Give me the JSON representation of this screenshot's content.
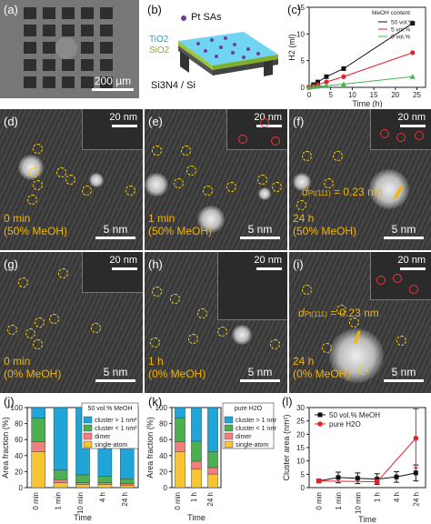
{
  "labels": {
    "a": "(a)",
    "b": "(b)",
    "c": "(c)",
    "d": "(d)",
    "e": "(e)",
    "f": "(f)",
    "g": "(g)",
    "h": "(h)",
    "i": "(i)",
    "j": "(j)",
    "k": "(k)",
    "l": "(l)"
  },
  "panel_a": {
    "scalebar": "200 µm"
  },
  "panel_b": {
    "legend": "Pt SAs",
    "tio2": "TiO2",
    "sio2": "SiO2",
    "substrate": "Si3N4 / Si"
  },
  "tem": {
    "inset_scale": "20 nm",
    "main_scale": "5 nm",
    "d": {
      "line1": "0 min",
      "line2": "(50% MeOH)"
    },
    "e": {
      "line1": "1 min",
      "line2": "(50% MeOH)"
    },
    "f": {
      "line1": "24 h",
      "line2": "(50% MeOH)",
      "dspacing": "= 0.23 nm",
      "dsub": "Pt(111)"
    },
    "g": {
      "line1": "0 min",
      "line2": "(0% MeOH)"
    },
    "h": {
      "line1": "1 h",
      "line2": "(0% MeOH)"
    },
    "i": {
      "line1": "24 h",
      "line2": "(0% MeOH)",
      "dspacing": "= 0.23 nm",
      "dsub": "Pt(111)"
    }
  },
  "colors": {
    "single": "#f7c531",
    "dimer": "#f08080",
    "cluster_lt1": "#4caf50",
    "cluster_gt1": "#1fa5d8",
    "series_50": "#111111",
    "series_pure": "#e8202a",
    "series_5": "#e8202a",
    "series_0": "#4caf50",
    "tem_yellow": "#f5b400"
  },
  "chart_data": [
    {
      "id": "c",
      "type": "line",
      "xlabel": "Time (h)",
      "ylabel": "H2 (ml)",
      "xlim": [
        0,
        27
      ],
      "ylim": [
        0,
        15
      ],
      "xticks": [
        0,
        5,
        10,
        15,
        20,
        25
      ],
      "yticks": [
        0,
        5,
        10,
        15
      ],
      "legend_title": "MeOH content",
      "series": [
        {
          "name": "50 vol.%",
          "x": [
            0,
            1,
            2,
            4,
            8,
            24
          ],
          "y": [
            0,
            0.5,
            1.0,
            2.0,
            3.5,
            12.0
          ]
        },
        {
          "name": "5 vol.%",
          "x": [
            0,
            1,
            2,
            4,
            8,
            24
          ],
          "y": [
            0,
            0.2,
            0.5,
            1.0,
            2.0,
            6.5
          ]
        },
        {
          "name": "0 vol.%",
          "x": [
            0,
            1,
            2,
            4,
            8,
            24
          ],
          "y": [
            0,
            0.1,
            0.2,
            0.3,
            0.6,
            2.0
          ]
        }
      ]
    },
    {
      "id": "j",
      "type": "bar",
      "stacked": true,
      "xlabel": "Time",
      "ylabel": "Area fraction (%)",
      "title": "50 vol.% MeOH",
      "ylim": [
        0,
        100
      ],
      "yticks": [
        0,
        20,
        40,
        60,
        80,
        100
      ],
      "categories": [
        "0 min",
        "1 min",
        "10 min",
        "4 h",
        "24 h"
      ],
      "series": [
        {
          "name": "single-atom",
          "values": [
            45,
            6,
            4,
            4,
            3
          ]
        },
        {
          "name": "dimer",
          "values": [
            12,
            4,
            2,
            2,
            2
          ]
        },
        {
          "name": "cluster < 1 nm²",
          "values": [
            30,
            12,
            10,
            8,
            6
          ]
        },
        {
          "name": "cluster > 1 nm²",
          "values": [
            13,
            78,
            84,
            86,
            89
          ]
        }
      ]
    },
    {
      "id": "k",
      "type": "bar",
      "stacked": true,
      "xlabel": "Time",
      "ylabel": "Area fraction (%)",
      "title": "pure H2O",
      "ylim": [
        0,
        100
      ],
      "yticks": [
        0,
        20,
        40,
        60,
        80,
        100
      ],
      "categories": [
        "0 min",
        "1 h",
        "24 h"
      ],
      "series": [
        {
          "name": "single-atom",
          "values": [
            45,
            23,
            17
          ]
        },
        {
          "name": "dimer",
          "values": [
            12,
            10,
            8
          ]
        },
        {
          "name": "cluster < 1 nm²",
          "values": [
            30,
            25,
            20
          ]
        },
        {
          "name": "cluster > 1 nm²",
          "values": [
            13,
            42,
            55
          ]
        }
      ]
    },
    {
      "id": "l",
      "type": "line",
      "xlabel": "Time",
      "ylabel": "Cluster area (nm²)",
      "ylim": [
        0,
        30
      ],
      "yticks": [
        0,
        5,
        10,
        15,
        20,
        25,
        30
      ],
      "categories": [
        "0 min",
        "1 min",
        "10 min",
        "1 h",
        "4 h",
        "24 h"
      ],
      "series": [
        {
          "name": "50 vol.% MeOH",
          "values": [
            2.5,
            3.8,
            3.5,
            3.2,
            4.0,
            5.5
          ],
          "errors": [
            0.5,
            2,
            2,
            2,
            2,
            3
          ]
        },
        {
          "name": "pure H2O",
          "values": [
            2.5,
            null,
            null,
            2.2,
            null,
            18.5
          ],
          "errors": [
            0.5,
            null,
            null,
            0.8,
            null,
            11
          ]
        }
      ]
    }
  ]
}
